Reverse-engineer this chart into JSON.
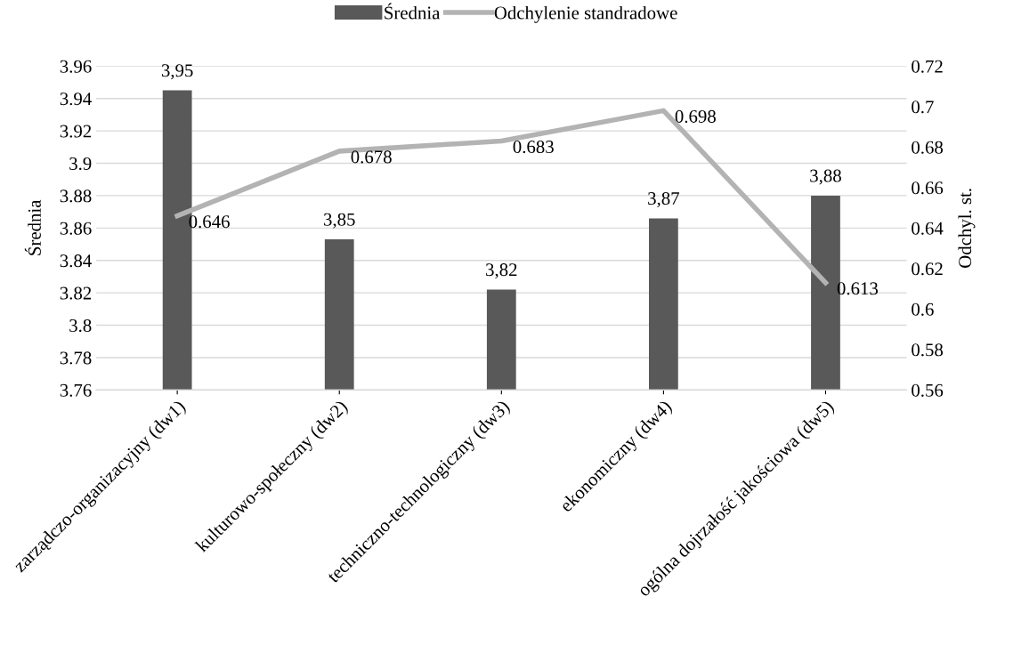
{
  "chart_data": {
    "type": "bar",
    "categories": [
      "zarządczo-organizacyjny (dw1)",
      "kulturowo-społeczny (dw2)",
      "techniczno-technologiczny (dw3)",
      "ekonomiczny (dw4)",
      "ogólna dojrzałość jakościowa (dw5)"
    ],
    "series": [
      {
        "name": "Średnia",
        "color": "#595959",
        "values": [
          3.945,
          3.853,
          3.822,
          3.866,
          3.88
        ],
        "value_labels": [
          "3,95",
          "3,85",
          "3,82",
          "3,87",
          "3,88"
        ]
      },
      {
        "name": "Odchylenie standradowe",
        "type": "line",
        "axis": "y2",
        "color": "#b3b3b3",
        "values": [
          0.646,
          0.678,
          0.683,
          0.698,
          0.613
        ],
        "value_labels": [
          "0.646",
          "0.678",
          "0.683",
          "0.698",
          "0.613"
        ]
      }
    ],
    "ylabel": "Średnia",
    "y2label": "Odchyl. st.",
    "ylim": [
      3.76,
      3.96
    ],
    "yticks": [
      3.76,
      3.78,
      3.8,
      3.82,
      3.84,
      3.86,
      3.88,
      3.9,
      3.92,
      3.94,
      3.96
    ],
    "y2lim": [
      0.56,
      0.72
    ],
    "y2ticks": [
      0.56,
      0.58,
      0.6,
      0.62,
      0.64,
      0.66,
      0.68,
      0.7,
      0.72
    ],
    "grid": "y",
    "legend": "top",
    "marker": "none",
    "line_style": "solid"
  }
}
